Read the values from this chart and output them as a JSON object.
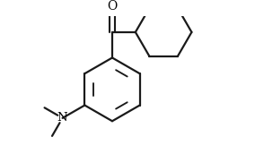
{
  "background_color": "#ffffff",
  "line_color": "#1a1a1a",
  "line_width": 1.6,
  "text_color": "#000000",
  "figsize": [
    2.84,
    1.72
  ],
  "dpi": 100,
  "o_fontsize": 10,
  "n_fontsize": 9.5
}
